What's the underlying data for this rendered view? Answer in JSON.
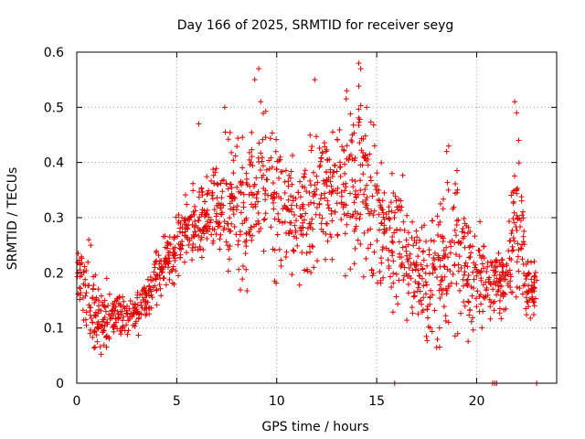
{
  "chart_data": {
    "type": "scatter",
    "title": "Day 166 of 2025, SRMTID for receiver seyg",
    "xlabel": "GPS time / hours",
    "ylabel": "SRMTID / TECUs",
    "xlim": [
      0,
      24
    ],
    "ylim": [
      0,
      0.6
    ],
    "x_ticks": [
      0,
      5,
      10,
      15,
      20
    ],
    "x_tick_labels": [
      "0",
      "5",
      "10",
      "15",
      "20"
    ],
    "y_ticks": [
      0,
      0.1,
      0.2,
      0.3,
      0.4,
      0.5,
      0.6
    ],
    "y_tick_labels": [
      "0",
      "0.1",
      "0.2",
      "0.3",
      "0.4",
      "0.5",
      "0.6"
    ],
    "grid": true,
    "marker": "plus",
    "marker_color": "#e00000",
    "envelope_hours": [
      0,
      0.5,
      1,
      1.5,
      2,
      2.5,
      3,
      3.5,
      4,
      4.5,
      5,
      5.5,
      6,
      6.5,
      7,
      7.5,
      8,
      8.5,
      9,
      9.5,
      10,
      10.5,
      11,
      11.5,
      12,
      12.5,
      13,
      13.5,
      14,
      14.5,
      15,
      15.5,
      16,
      16.5,
      17,
      17.5,
      18,
      18.5,
      19,
      19.5,
      20,
      20.5,
      21,
      21.5,
      22,
      22.5,
      23
    ],
    "envelope_low": [
      0.14,
      0.06,
      0.05,
      0.05,
      0.08,
      0.07,
      0.08,
      0.1,
      0.13,
      0.15,
      0.18,
      0.2,
      0.2,
      0.21,
      0.21,
      0.19,
      0.16,
      0.14,
      0.18,
      0.19,
      0.18,
      0.17,
      0.18,
      0.16,
      0.17,
      0.18,
      0.19,
      0.19,
      0.18,
      0.16,
      0.16,
      0.12,
      0.1,
      0.09,
      0.08,
      0.06,
      0.06,
      0.05,
      0.05,
      0.07,
      0.09,
      0.1,
      0.1,
      0.12,
      0.11,
      0.1,
      0.1
    ],
    "envelope_high": [
      0.26,
      0.27,
      0.21,
      0.16,
      0.18,
      0.17,
      0.17,
      0.2,
      0.26,
      0.3,
      0.32,
      0.35,
      0.38,
      0.4,
      0.42,
      0.47,
      0.5,
      0.48,
      0.52,
      0.57,
      0.5,
      0.42,
      0.42,
      0.44,
      0.55,
      0.46,
      0.5,
      0.53,
      0.58,
      0.56,
      0.48,
      0.4,
      0.42,
      0.35,
      0.32,
      0.3,
      0.34,
      0.42,
      0.43,
      0.36,
      0.3,
      0.28,
      0.25,
      0.25,
      0.5,
      0.24,
      0.22
    ],
    "points_per_hour": 70,
    "isolated_points": [
      {
        "x": 0.6,
        "y": 0.26
      },
      {
        "x": 0.7,
        "y": 0.25
      },
      {
        "x": 1.5,
        "y": 0.19
      },
      {
        "x": 6.1,
        "y": 0.47
      },
      {
        "x": 7.4,
        "y": 0.5
      },
      {
        "x": 8.9,
        "y": 0.55
      },
      {
        "x": 9.1,
        "y": 0.57
      },
      {
        "x": 9.2,
        "y": 0.51
      },
      {
        "x": 11.9,
        "y": 0.55
      },
      {
        "x": 13.5,
        "y": 0.53
      },
      {
        "x": 14.1,
        "y": 0.58
      },
      {
        "x": 14.2,
        "y": 0.57
      },
      {
        "x": 14.5,
        "y": 0.5
      },
      {
        "x": 15.9,
        "y": 0.0
      },
      {
        "x": 18.5,
        "y": 0.42
      },
      {
        "x": 18.6,
        "y": 0.43
      },
      {
        "x": 20.8,
        "y": 0.0
      },
      {
        "x": 20.9,
        "y": 0.0
      },
      {
        "x": 21.0,
        "y": 0.0
      },
      {
        "x": 21.9,
        "y": 0.51
      },
      {
        "x": 22.0,
        "y": 0.49
      },
      {
        "x": 22.1,
        "y": 0.44
      },
      {
        "x": 23.0,
        "y": 0.0
      },
      {
        "x": 22.6,
        "y": 0.2
      }
    ]
  }
}
